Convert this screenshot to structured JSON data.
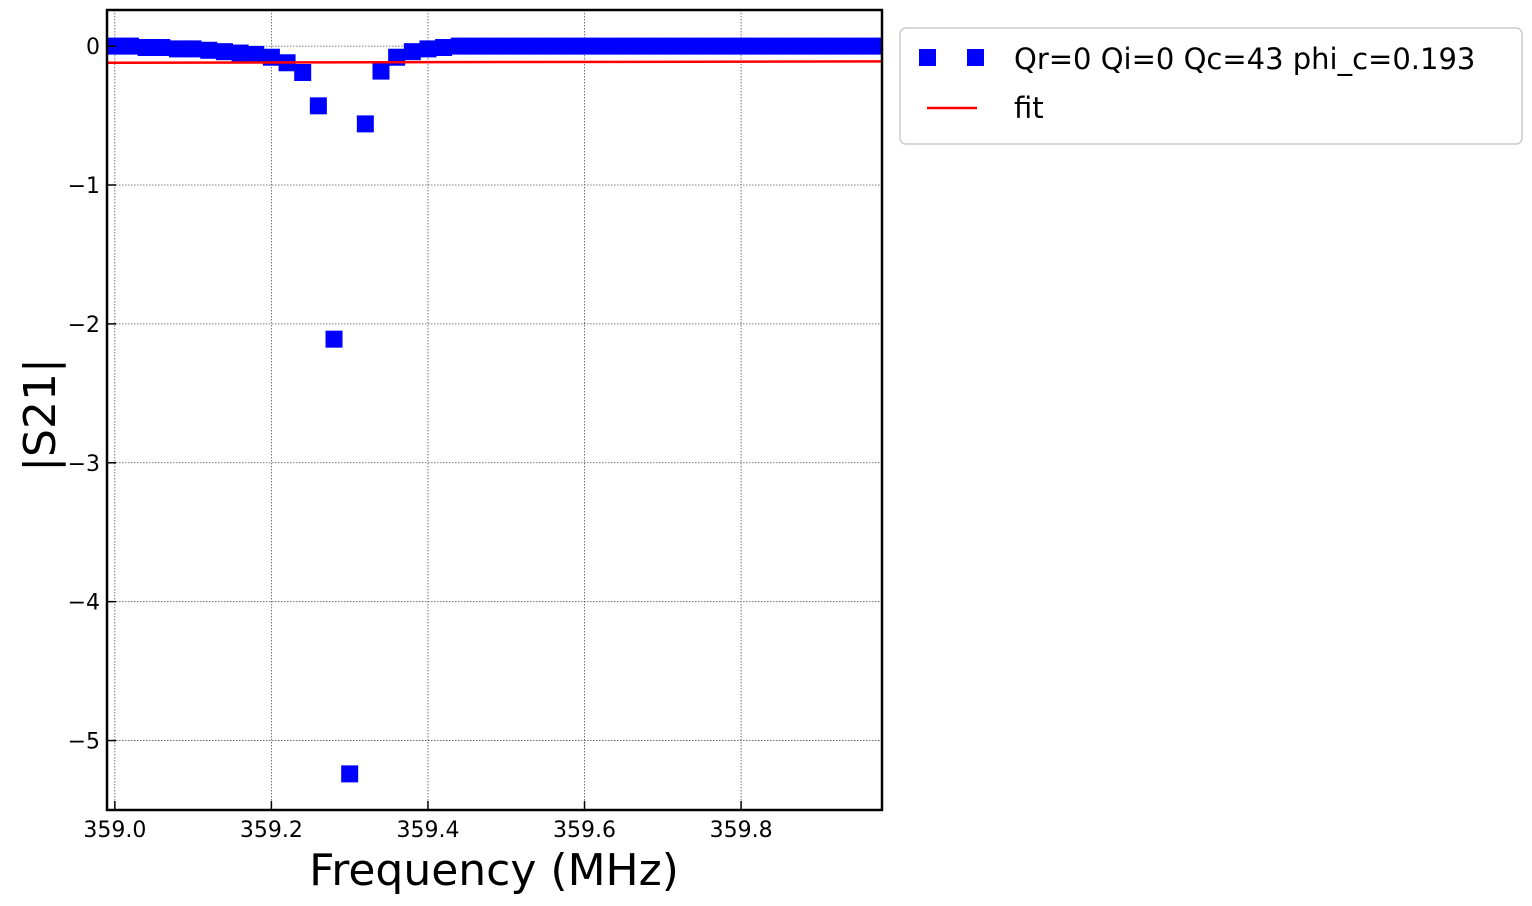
{
  "chart_data": {
    "type": "scatter",
    "xlabel": "Frequency (MHz)",
    "ylabel": "|S21|",
    "xlim": [
      358.99,
      359.98
    ],
    "ylim": [
      -5.5,
      0.26
    ],
    "grid": true,
    "legend_placement": "outside top-right",
    "x_ticks": [
      359.0,
      359.2,
      359.4,
      359.6,
      359.8
    ],
    "x_tick_labels": [
      "359.0",
      "359.2",
      "359.4",
      "359.6",
      "359.8"
    ],
    "y_ticks": [
      0,
      -1,
      -2,
      -3,
      -4,
      -5
    ],
    "y_tick_labels": [
      "0",
      "−1",
      "−2",
      "−3",
      "−4",
      "−5"
    ],
    "series": [
      {
        "name": "Qr=0 Qi=0 Qc=43 phi_c=0.193",
        "marker": "square",
        "color": "#0000ff",
        "x": [
          358.98,
          359.0,
          359.02,
          359.04,
          359.06,
          359.08,
          359.1,
          359.12,
          359.14,
          359.16,
          359.18,
          359.2,
          359.22,
          359.24,
          359.26,
          359.28,
          359.3,
          359.32,
          359.34,
          359.36,
          359.38,
          359.4,
          359.42,
          359.44,
          359.46,
          359.48,
          359.5,
          359.52,
          359.54,
          359.56,
          359.58,
          359.6,
          359.62,
          359.64,
          359.66,
          359.68,
          359.7,
          359.72,
          359.74,
          359.76,
          359.78,
          359.8,
          359.82,
          359.84,
          359.86,
          359.88,
          359.9,
          359.92,
          359.94,
          359.96,
          359.98
        ],
        "y": [
          0.0,
          0.0,
          0.0,
          -0.01,
          -0.01,
          -0.02,
          -0.02,
          -0.03,
          -0.04,
          -0.05,
          -0.06,
          -0.08,
          -0.12,
          -0.19,
          -0.43,
          -2.11,
          -5.24,
          -0.56,
          -0.18,
          -0.08,
          -0.04,
          -0.02,
          -0.01,
          0.0,
          0.0,
          0.0,
          0.0,
          0.0,
          0.0,
          0.0,
          0.0,
          0.0,
          0.0,
          0.0,
          0.0,
          0.0,
          0.0,
          0.0,
          0.0,
          0.0,
          0.0,
          0.0,
          0.0,
          0.0,
          0.0,
          0.0,
          0.0,
          0.0,
          0.0,
          0.0,
          0.0
        ]
      },
      {
        "name": "fit",
        "marker": "line",
        "color": "#ff0000",
        "x": [
          358.99,
          359.98
        ],
        "y": [
          -0.12,
          -0.11
        ]
      }
    ]
  }
}
